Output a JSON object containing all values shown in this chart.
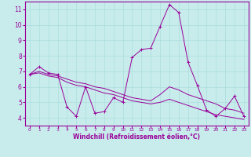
{
  "xlabel": "Windchill (Refroidissement éolien,°C)",
  "xlim": [
    -0.5,
    23.5
  ],
  "ylim": [
    3.5,
    11.5
  ],
  "xticks": [
    0,
    1,
    2,
    3,
    4,
    5,
    6,
    7,
    8,
    9,
    10,
    11,
    12,
    13,
    14,
    15,
    16,
    17,
    18,
    19,
    20,
    21,
    22,
    23
  ],
  "yticks": [
    4,
    5,
    6,
    7,
    8,
    9,
    10,
    11
  ],
  "bg_color": "#c8ecec",
  "line_color": "#990099",
  "grid_color": "#aadddd",
  "series1": [
    6.8,
    7.3,
    6.9,
    6.8,
    4.7,
    4.1,
    6.0,
    4.3,
    4.4,
    5.3,
    5.0,
    7.9,
    8.4,
    8.5,
    9.9,
    11.3,
    10.8,
    7.6,
    6.1,
    4.5,
    4.1,
    4.6,
    5.4,
    4.1
  ],
  "series2": [
    6.8,
    7.0,
    6.8,
    6.7,
    6.5,
    6.3,
    6.2,
    6.0,
    5.9,
    5.7,
    5.5,
    5.3,
    5.2,
    5.1,
    5.5,
    6.0,
    5.8,
    5.5,
    5.3,
    5.1,
    4.9,
    4.6,
    4.5,
    4.3
  ],
  "series3": [
    6.8,
    6.9,
    6.7,
    6.6,
    6.3,
    6.1,
    6.0,
    5.8,
    5.6,
    5.5,
    5.3,
    5.1,
    5.0,
    4.9,
    5.0,
    5.2,
    5.0,
    4.8,
    4.6,
    4.4,
    4.2,
    4.1,
    4.0,
    3.9
  ]
}
